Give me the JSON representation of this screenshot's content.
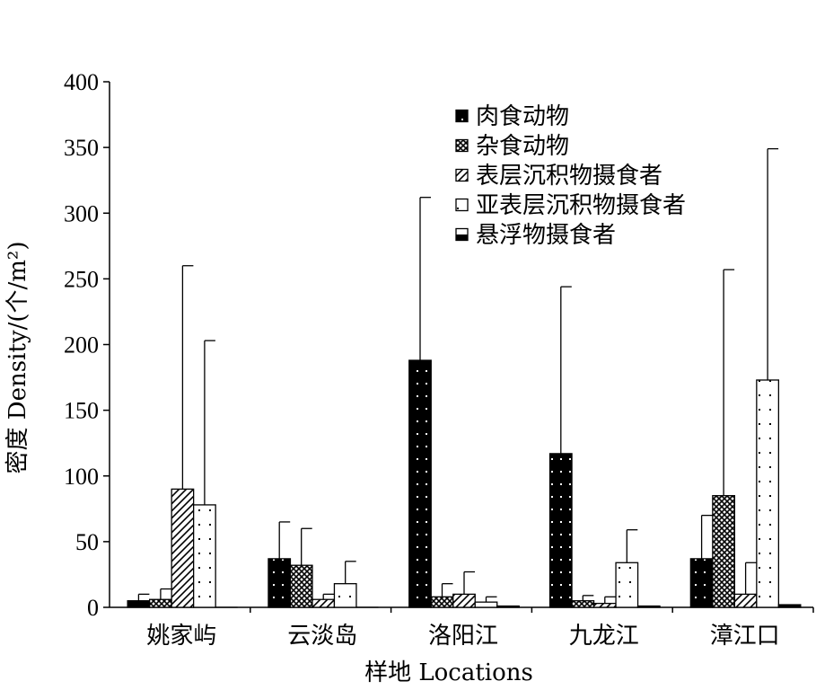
{
  "chart_data": {
    "type": "bar",
    "title": "",
    "xlabel": "样地 Locations",
    "ylabel": "密度 Density/(个/m²)",
    "ylim": [
      0,
      400
    ],
    "yticks": [
      "0",
      "50",
      "100",
      "150",
      "200",
      "250",
      "300",
      "350",
      "400"
    ],
    "categories": [
      "姚家屿",
      "云淡岛",
      "洛阳江",
      "九龙江",
      "漳江口"
    ],
    "legend_position": "top-right",
    "grid": false,
    "error_bars": true,
    "series": [
      {
        "name": "肉食动物",
        "pattern": "solid-dots",
        "values": [
          5,
          37,
          188,
          117,
          37
        ],
        "errors": [
          5,
          28,
          124,
          127,
          33
        ]
      },
      {
        "name": "杂食动物",
        "pattern": "crosshatch",
        "values": [
          6,
          32,
          8,
          5,
          85
        ],
        "errors": [
          8,
          28,
          10,
          4,
          172
        ]
      },
      {
        "name": "表层沉积物摄食者",
        "pattern": "diagonal",
        "values": [
          90,
          6,
          10,
          3,
          10
        ],
        "errors": [
          170,
          4,
          17,
          5,
          24
        ]
      },
      {
        "name": "亚表层沉积物摄食者",
        "pattern": "open-dots",
        "values": [
          78,
          18,
          4,
          34,
          173
        ],
        "errors": [
          125,
          17,
          4,
          25,
          176
        ]
      },
      {
        "name": "悬浮物摄食者",
        "pattern": "half-filled",
        "values": [
          0,
          0,
          1,
          1,
          2
        ],
        "errors": [
          0,
          0,
          0,
          0,
          0
        ]
      }
    ]
  }
}
